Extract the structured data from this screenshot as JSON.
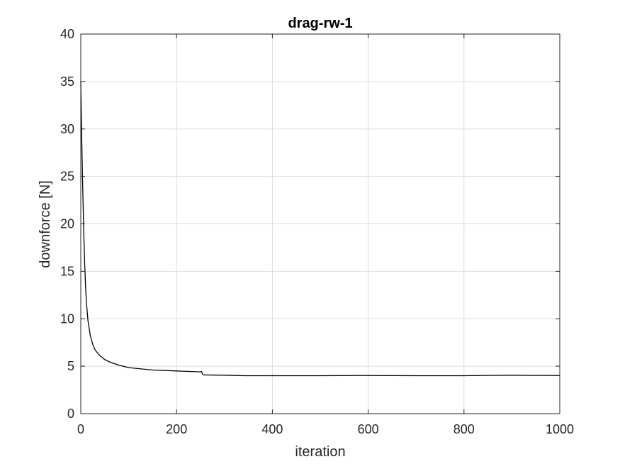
{
  "chart_data": {
    "type": "line",
    "title": "drag-rw-1",
    "xlabel": "iteration",
    "ylabel": "downforce [N]",
    "xlim": [
      0,
      1000
    ],
    "ylim": [
      0,
      40
    ],
    "xticks": [
      0,
      200,
      400,
      600,
      800,
      1000
    ],
    "yticks": [
      0,
      5,
      10,
      15,
      20,
      25,
      30,
      35,
      40
    ],
    "xtick_labels": [
      "0",
      "200",
      "400",
      "600",
      "800",
      "1000"
    ],
    "ytick_labels": [
      "0",
      "5",
      "10",
      "15",
      "20",
      "25",
      "30",
      "35",
      "40"
    ],
    "grid": true,
    "legend": "none",
    "series": [
      {
        "color": "#000000",
        "x": [
          0,
          2,
          4,
          6,
          8,
          10,
          12,
          15,
          20,
          25,
          30,
          40,
          50,
          60,
          80,
          100,
          120,
          150,
          200,
          250,
          252,
          255,
          260,
          300,
          340,
          400,
          500,
          600,
          700,
          800,
          850,
          900,
          950,
          1000
        ],
        "y": [
          35,
          29,
          24,
          19.5,
          16,
          13.4,
          11.6,
          9.8,
          8.2,
          7.3,
          6.7,
          6.1,
          5.7,
          5.45,
          5.1,
          4.85,
          4.75,
          4.6,
          4.5,
          4.4,
          4.45,
          4.1,
          4.08,
          4.05,
          4.0,
          4.0,
          4.0,
          4.02,
          4.0,
          4.0,
          4.03,
          4.05,
          4.03,
          4.02
        ]
      }
    ]
  }
}
